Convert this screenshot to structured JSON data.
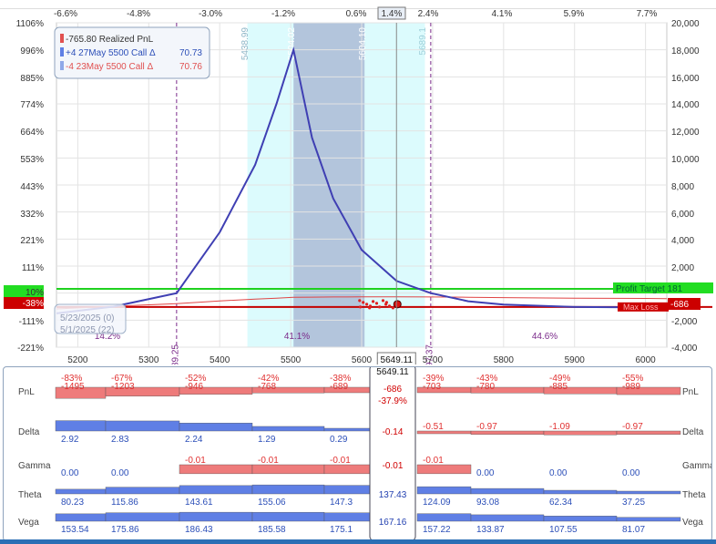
{
  "colors": {
    "curve": "#3f3fb3",
    "profit_line": "#1fd11f",
    "loss_line": "#c40000",
    "range_light": "#dcfbfd",
    "range_dark": "#b3c5dc",
    "neg_bar": "#ee7b7b",
    "pos_bar": "#5f7fe5",
    "pct_neg": "#e03030",
    "pct_pos": "#2c4fb8"
  },
  "top_axis": {
    "ticks": [
      "-6.6%",
      "-4.8%",
      "-3.0%",
      "-1.2%",
      "0.6%",
      "1.4%",
      "2.4%",
      "4.1%",
      "5.9%",
      "7.7%"
    ],
    "highlight": "1.4%"
  },
  "left_axis": {
    "ticks": [
      "1106%",
      "996%",
      "885%",
      "774%",
      "664%",
      "553%",
      "443%",
      "332%",
      "221%",
      "111%",
      "10%",
      "-38%",
      "-111%",
      "-221%"
    ]
  },
  "right_axis": {
    "ticks": [
      "20,000",
      "18,000",
      "16,000",
      "14,000",
      "12,000",
      "10,000",
      "8,000",
      "6,000",
      "4,000",
      "2,000",
      "-686",
      "-2,000",
      "-4,000"
    ]
  },
  "x_axis": {
    "ticks": [
      "5200",
      "5300",
      "5400",
      "5500",
      "5600",
      "5700",
      "5800",
      "5900",
      "6000"
    ],
    "current_price": "5649.11"
  },
  "vertical_labels": {
    "range_left": "5438.99",
    "peak": "5504.02",
    "range_right_inner": "5604.10",
    "range_right_outer": "5689.1",
    "breakeven_low": "5339.25",
    "breakeven_high": "5697.37"
  },
  "probabilities": [
    "14.2%",
    "41.1%",
    "44.6%"
  ],
  "legend": {
    "realized": "-765.80 Realized PnL",
    "leg1": "+4 27May 5500 Call Δ",
    "leg1_value": "70.73",
    "leg2": "-4 23May 5500 Call Δ",
    "leg2_value": "70.76"
  },
  "date_legend": {
    "date1": "5/23/2025 (0)",
    "date2": "5/1/2025 (22)"
  },
  "markers": {
    "profit_target": "Profit Target 181",
    "max_loss": "Max Loss",
    "current_pnl": "-686"
  },
  "chart_data": {
    "type": "line",
    "xlabel": "",
    "ylabel": "",
    "xlim": [
      5170,
      6030
    ],
    "ylim": [
      -4000,
      20000
    ],
    "x": [
      5170,
      5250,
      5339.25,
      5400,
      5450,
      5480,
      5504.02,
      5530,
      5560,
      5600,
      5649.11,
      5697.37,
      5750,
      5800,
      5900,
      6000,
      6030
    ],
    "series": [
      {
        "values": [
          -1500,
          -1000,
          0,
          4500,
          9500,
          14000,
          18000,
          11500,
          7000,
          3200,
          900,
          0,
          -600,
          -850,
          -1030,
          -1060,
          -1065
        ]
      },
      {
        "values": [
          -1570,
          -1380,
          -1180,
          -980,
          -850,
          -780,
          -720,
          -705,
          -690,
          -686,
          -686,
          -690,
          -710,
          -740,
          -780,
          -800,
          -810
        ]
      }
    ],
    "profit_target": 181,
    "max_loss": -686,
    "current_price": 5649.11,
    "breakevens": [
      5339.25,
      5697.37
    ],
    "expected_ranges": [
      [
        5438.99,
        5689.1
      ],
      [
        5504.02,
        5604.1
      ]
    ]
  },
  "greeks": {
    "prices": [
      "5200",
      "5300",
      "5400",
      "5500",
      "5600",
      "5649.11",
      "5700",
      "5800",
      "5900",
      "6000"
    ],
    "rows": [
      {
        "name": "PnL",
        "values": [
          -1495,
          -1203,
          -946,
          -768,
          -689,
          -686,
          -703,
          -780,
          -885,
          -989
        ],
        "labels": [
          "-1495",
          "-1203",
          "-946",
          "-768",
          "-689",
          "-686",
          "-703",
          "-780",
          "-885",
          "-989"
        ],
        "pcts": [
          "-83%",
          "-67%",
          "-52%",
          "-42%",
          "-38%",
          "-37.9%",
          "-39%",
          "-43%",
          "-49%",
          "-55%"
        ]
      },
      {
        "name": "Delta",
        "values": [
          2.92,
          2.83,
          2.24,
          1.29,
          0.29,
          -0.14,
          -0.51,
          -0.97,
          -1.09,
          -0.97
        ],
        "labels": [
          "2.92",
          "2.83",
          "2.24",
          "1.29",
          "0.29",
          "-0.14",
          "-0.51",
          "-0.97",
          "-1.09",
          "-0.97"
        ]
      },
      {
        "name": "Gamma",
        "values": [
          0,
          0,
          -0.01,
          -0.01,
          -0.01,
          -0.01,
          -0.01,
          0,
          0,
          0
        ],
        "labels": [
          "0.00",
          "0.00",
          "-0.01",
          "-0.01",
          "-0.01",
          "-0.01",
          "-0.01",
          "0.00",
          "0.00",
          "0.00"
        ]
      },
      {
        "name": "Theta",
        "values": [
          80.23,
          115.86,
          143.61,
          155.06,
          147.3,
          137.43,
          124.09,
          93.08,
          62.34,
          37.25
        ],
        "labels": [
          "80.23",
          "115.86",
          "143.61",
          "155.06",
          "147.3",
          "137.43",
          "124.09",
          "93.08",
          "62.34",
          "37.25"
        ]
      },
      {
        "name": "Vega",
        "values": [
          153.54,
          175.86,
          186.43,
          185.58,
          175.1,
          167.16,
          157.22,
          133.87,
          107.55,
          81.07
        ],
        "labels": [
          "153.54",
          "175.86",
          "186.43",
          "185.58",
          "175.1",
          "167.16",
          "157.22",
          "133.87",
          "107.55",
          "81.07"
        ]
      }
    ]
  }
}
